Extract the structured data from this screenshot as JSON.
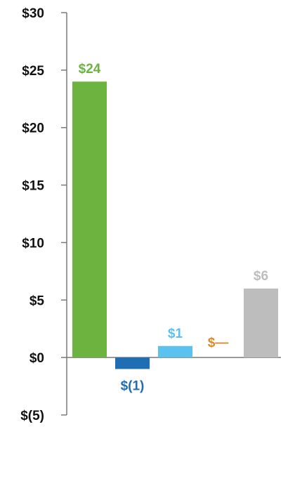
{
  "chart_data": {
    "type": "bar",
    "title": "",
    "xlabel": "",
    "ylabel": "",
    "ylim": [
      -5,
      30
    ],
    "grid": false,
    "yticks": [
      {
        "value": 30,
        "label": "$30"
      },
      {
        "value": 25,
        "label": "$25"
      },
      {
        "value": 20,
        "label": "$20"
      },
      {
        "value": 15,
        "label": "$15"
      },
      {
        "value": 10,
        "label": "$10"
      },
      {
        "value": 5,
        "label": "$5"
      },
      {
        "value": 0,
        "label": "$0"
      },
      {
        "value": -5,
        "label": "$(5)"
      }
    ],
    "bars": [
      {
        "value": 24,
        "label": "$24",
        "color": "#6db33f",
        "label_color": "#6db33f"
      },
      {
        "value": -1,
        "label": "$(1)",
        "color": "#1f6db3",
        "label_color": "#1f6db3"
      },
      {
        "value": 1,
        "label": "$1",
        "color": "#5bc1ee",
        "label_color": "#5bc1ee"
      },
      {
        "value": 0,
        "label": "$—",
        "color": "#d98a2b",
        "label_color": "#d98a2b"
      },
      {
        "value": 6,
        "label": "$6",
        "color": "#bdbdbd",
        "label_color": "#bdbdbd"
      }
    ]
  }
}
